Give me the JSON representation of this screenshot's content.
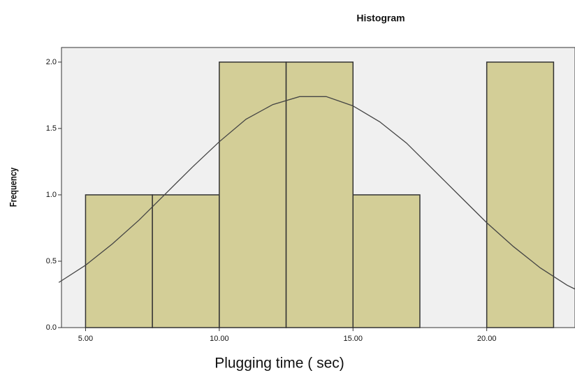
{
  "chart_data": {
    "type": "histogram",
    "title": "Histogram",
    "x_label": "Plugging time ( sec)",
    "y_label": "Frequency",
    "bins": [
      5,
      7.5,
      10,
      12.5,
      15,
      17.5,
      20,
      22.5
    ],
    "values": [
      1,
      1,
      2,
      2,
      1,
      0,
      2
    ],
    "color": "#d3ce97",
    "curve": {
      "x": [
        4,
        5,
        6,
        7,
        8,
        9,
        10,
        11,
        12,
        13,
        14,
        15,
        16,
        17,
        18,
        19,
        20,
        21,
        22,
        23,
        23.3
      ],
      "values": [
        0.34,
        0.47,
        0.63,
        0.81,
        1.01,
        1.21,
        1.4,
        1.57,
        1.68,
        1.74,
        1.74,
        1.67,
        1.55,
        1.39,
        1.19,
        0.99,
        0.79,
        0.61,
        0.45,
        0.32,
        0.29
      ],
      "color": "#444444"
    },
    "xlim": [
      4.1,
      23.3
    ],
    "ylim": [
      0,
      2.11
    ],
    "xticks": [
      {
        "value": 5,
        "label": "5.00"
      },
      {
        "value": 10,
        "label": "10.00"
      },
      {
        "value": 15,
        "label": "15.00"
      },
      {
        "value": 20,
        "label": "20.00"
      }
    ],
    "yticks": [
      {
        "value": 0,
        "label": "0.0"
      },
      {
        "value": 0.5,
        "label": "0.5"
      },
      {
        "value": 1,
        "label": "1.0"
      },
      {
        "value": 1.5,
        "label": "1.5"
      },
      {
        "value": 2,
        "label": "2.0"
      }
    ]
  }
}
